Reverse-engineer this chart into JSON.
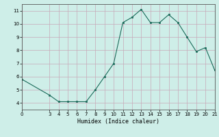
{
  "x": [
    0,
    3,
    4,
    5,
    6,
    7,
    8,
    9,
    10,
    11,
    12,
    13,
    14,
    15,
    16,
    17,
    18,
    19,
    20,
    21
  ],
  "y": [
    5.8,
    4.6,
    4.1,
    4.1,
    4.1,
    4.1,
    5.0,
    6.0,
    7.0,
    10.1,
    10.5,
    11.1,
    10.1,
    10.1,
    10.7,
    10.1,
    9.0,
    7.9,
    8.2,
    6.5
  ],
  "xlabel": "Humidex (Indice chaleur)",
  "xlim": [
    0,
    21
  ],
  "ylim": [
    3.5,
    11.5
  ],
  "yticks": [
    4,
    5,
    6,
    7,
    8,
    9,
    10,
    11
  ],
  "xticks": [
    0,
    3,
    4,
    5,
    6,
    7,
    8,
    9,
    10,
    11,
    12,
    13,
    14,
    15,
    16,
    17,
    18,
    19,
    20,
    21
  ],
  "line_color": "#1a6b5a",
  "marker_color": "#1a6b5a",
  "bg_color": "#ceeee8",
  "grid_color": "#c8a8b8",
  "figure_bg": "#ceeee8"
}
